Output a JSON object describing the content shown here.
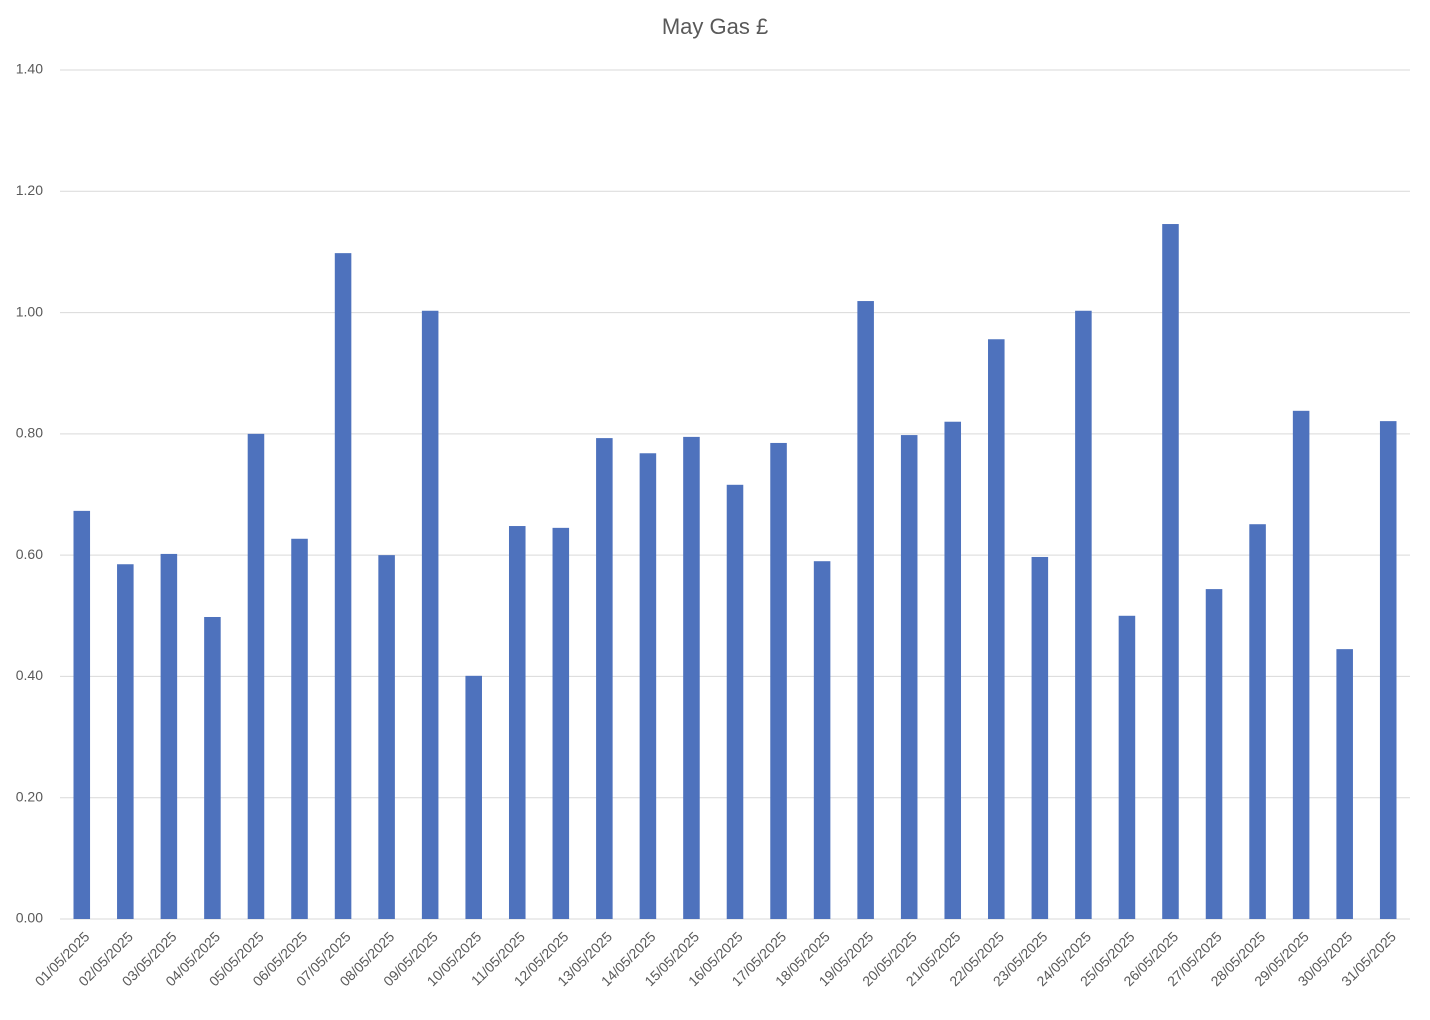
{
  "chart_data": {
    "type": "bar",
    "title": "May Gas £",
    "categories": [
      "01/05/2025",
      "02/05/2025",
      "03/05/2025",
      "04/05/2025",
      "05/05/2025",
      "06/05/2025",
      "07/05/2025",
      "08/05/2025",
      "09/05/2025",
      "10/05/2025",
      "11/05/2025",
      "12/05/2025",
      "13/05/2025",
      "14/05/2025",
      "15/05/2025",
      "16/05/2025",
      "17/05/2025",
      "18/05/2025",
      "19/05/2025",
      "20/05/2025",
      "21/05/2025",
      "22/05/2025",
      "23/05/2025",
      "24/05/2025",
      "25/05/2025",
      "26/05/2025",
      "27/05/2025",
      "28/05/2025",
      "29/05/2025",
      "30/05/2025",
      "31/05/2025"
    ],
    "values": [
      0.673,
      0.585,
      0.602,
      0.498,
      0.8,
      0.627,
      1.098,
      0.6,
      1.003,
      0.401,
      0.648,
      0.645,
      0.793,
      0.768,
      0.795,
      0.716,
      0.785,
      0.59,
      1.019,
      0.798,
      0.82,
      0.956,
      0.597,
      1.003,
      0.5,
      1.146,
      0.544,
      0.651,
      0.838,
      0.445,
      0.821
    ],
    "color": "#4e72bd",
    "ylim": [
      0,
      1.4
    ],
    "yticks": [
      {
        "value": 0,
        "label": "0.00"
      },
      {
        "value": 0.2,
        "label": "0.20"
      },
      {
        "value": 0.4,
        "label": "0.40"
      },
      {
        "value": 0.6,
        "label": "0.60"
      },
      {
        "value": 0.8,
        "label": "0.80"
      },
      {
        "value": 1.0,
        "label": "1.00"
      },
      {
        "value": 1.2,
        "label": "1.20"
      },
      {
        "value": 1.4,
        "label": "1.40"
      }
    ],
    "grid": true
  }
}
